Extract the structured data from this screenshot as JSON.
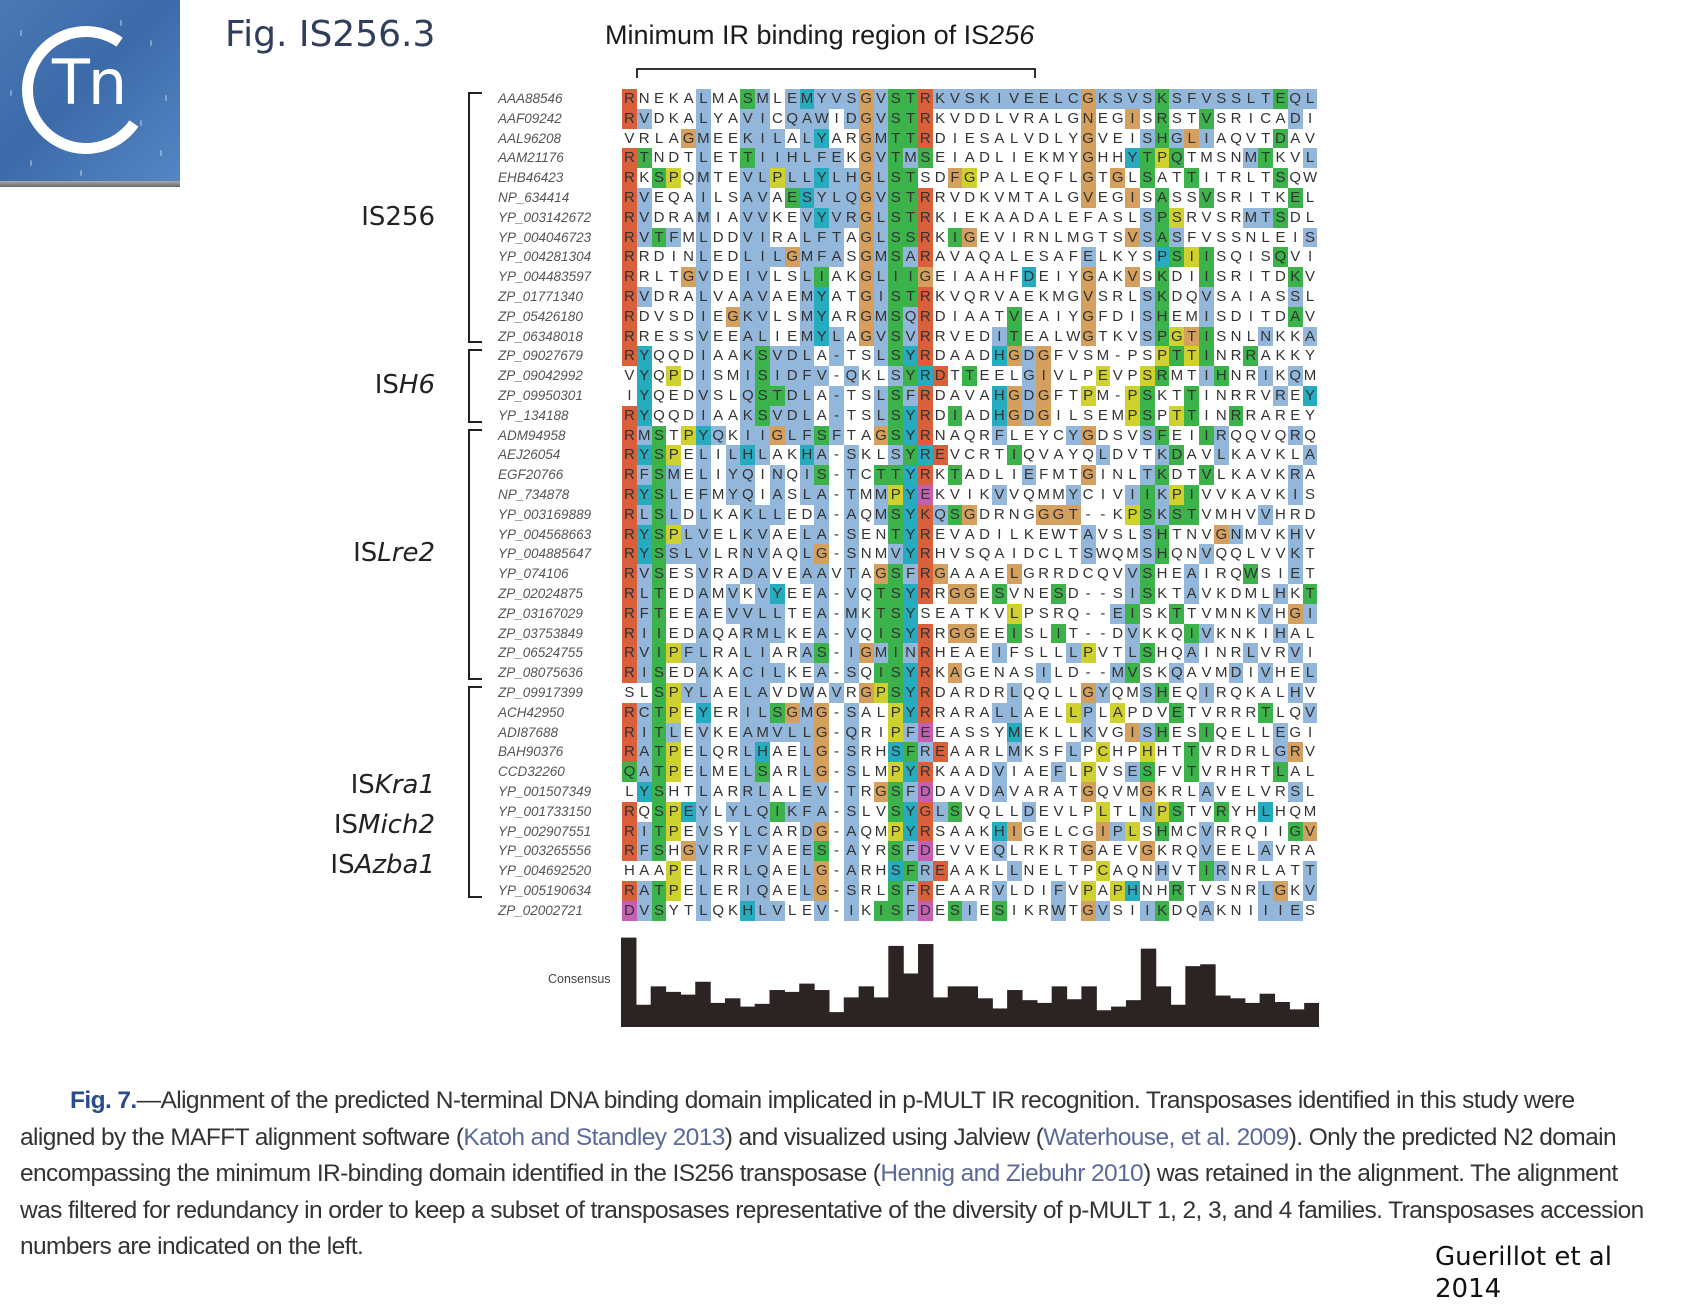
{
  "header": {
    "logo_text": "Tn",
    "fig_title": "Fig. IS256.3",
    "panel_title_prefix": "Minimum IR binding region of IS",
    "panel_title_italic": "256"
  },
  "families": [
    {
      "name": "IS256",
      "label_lines": [
        "IS256"
      ],
      "first_row": 0,
      "last_row": 12
    },
    {
      "name": "ISH6",
      "label_lines": [
        "ISH6"
      ],
      "first_row": 13,
      "last_row": 16
    },
    {
      "name": "ISLre2",
      "label_lines": [
        "ISLre2"
      ],
      "first_row": 17,
      "last_row": 29
    },
    {
      "name": "ISKra1/ISMich2/ISAzba1",
      "label_lines": [
        "ISKra1",
        "ISMich2",
        "ISAzba1"
      ],
      "first_row": 30,
      "last_row": 40
    }
  ],
  "color_legend": {
    "r": "#d9603b",
    "b": "#93b7da",
    "g": "#d5a05e",
    "s": "#3bb34a",
    "y": "#27abbf",
    "p": "#cfd22e",
    "m": "#c45fb2"
  },
  "alignment": [
    {
      "acc": "AAA88546",
      "seq": "RNEKALMASMLEMYVSGVSTRKVSKIVEELCGKSVSKSFVSSLTEQL",
      "col": "r....b..sb.bybbbgbssrbbbbbbbbbbgbbbbsbbbbbbbsbbb"
    },
    {
      "acc": "AAF09242",
      "seq": "RVDKALYAVICQAWIDGVSTRKVDDLVRALGNEGISRSTVSRICADI",
      "col": "rb...b..bb.bbb.bgbssr..........g..g.s..s.....b.b"
    },
    {
      "acc": "AAL96208",
      "seq": "VRLAGMEEKILALYARGMTTRDIESALVDLYGVEISHGLIAQVTDAV",
      "col": "....gb..bbb.by..gbssr..........g...bsbgb....s..b"
    },
    {
      "acc": "AAM21176",
      "seq": "RTNDTLETTIIHLFEKGVTMSEIADLIEKMYGHHYTPQTMSNMTKVL",
      "col": "rs...b..sbbbbbb.gbsbs..........g..ysps....bs..b"
    },
    {
      "acc": "EHB46423",
      "seq": "RKSPQMTEVLPLLYLHGLSTSDFGPALEQFLGTGLSATTITRLTSQW",
      "col": "r.sp.b..bbpbbybbgbss..gp.......g.g.s..s.....s..b"
    },
    {
      "acc": "NP_634414",
      "seq": "RVEQAILSAVAESYLQGVSTRRVDKVMTALGVEGISASSVSRITKEL",
      "col": "rb...b..bb.sybbbgbssr..........g..g.s..s.....s..b"
    },
    {
      "acc": "YP_003142672",
      "seq": "RVDRAMIAVVKEVYVRGLSTRKIEKAADALEFASLSPSRVSRMTSDL",
      "col": "rb...b..bb..bybbgbssr..............bsp....bbs..b"
    },
    {
      "acc": "YP_004046723",
      "seq": "RVTFMLDDVIRALFTAGLSSRKIGEVIRNLMGTSVSASFVSSNLEIS",
      "col": "rbsb.b..bb..bbb.gbssr.sg..........gbsb........b.s"
    },
    {
      "acc": "YP_004281304",
      "seq": "RRDINLEDLILGMFASGMSARAVAQALESAFELKYSPSIISQISQVI",
      "col": "r....b..bbbgbbb.gbsbr..........b....ysps....s..s"
    },
    {
      "acc": "YP_004483597",
      "seq": "RRLTGVDEIVLSLIAKGLIIGEIAAHFDEIYGAKVSKDIISRITDKV",
      "col": "r...gb..bb..bs..gbssg......y...g..g.s..s.....s..b"
    },
    {
      "acc": "ZP_01771340",
      "seq": "RVDRALVAAVAEMYATGISTRKVQRVAEKMGVSRLSKDQVSAIASSL",
      "col": "rb...b..bb..by..gbssr..........g...bs..b.....b..b"
    },
    {
      "acc": "ZP_05426180",
      "seq": "RDVSDIEGKVLSMYARGMSQRDIAATVEAIYGFDISHEMISDITDAV",
      "col": "r....b.gbb..by..gbsbr.....s....g...bs..b.....s..b"
    },
    {
      "acc": "ZP_06348018",
      "seq": "RRESSVEEALIEMYLAGVSVRRVEDITEALWGTKVSPGTISNLNKKA",
      "col": "r....b..bb..byb.gbsbr....bs....g...bspgs...b..b.b"
    },
    {
      "acc": "ZP_09027679",
      "seq": "RYQQDIAAKSVDLA-TSLSYRDAADHGDGFVSM-PSPTTINRRAKKY",
      "col": "ry...b..bsbbb.b..bsyr....ygbg.......psps..s....y"
    },
    {
      "acc": "ZP_09042992",
      "seq": "VYQPDISMISIDFV-QKLSYRDTTEELGIVLPEVPSRMTIHNRIKQM",
      "col": ".y.p.b..bsbbbb.b..bsyr.s...bg...p..ps..bs..b.b..b"
    },
    {
      "acc": "ZP_09950301",
      "seq": "IYQEDVSLQSTDLA-TSLSFRDAVAHGDGFTPM-PSKTTINRRVREY",
      "col": ".y...b..bssbb.b..bsbr....ygbg..p..ps..s.....b.y"
    },
    {
      "acc": "YP_134188",
      "seq": "RYQQDIAAKSVDLA-TSLSYRDIADHGDGILSEMPSPTTINRRAREY",
      "col": "ry...b..bsbbb.b..bsyr.s..ygbg.....ps.ps..s......y"
    },
    {
      "acc": "ADM94958",
      "seq": "RMSTPYQKIIGLFSFTAGSYRNAQRFLEYCYGDSVSFEIIRQQVQRQ",
      "col": "rbs.pyb.bbgbbsb..gsyr....b....bg...bs..sb....b.b"
    },
    {
      "acc": "AEJ26054",
      "seq": "RYSPELILHLAKHA-SKLSYREVCRTIQVAYQLDVTKDAVLKAVKLA",
      "col": "rysp.b.byb..yb.b..bsyr....s.....b...bs..b.....b.b"
    },
    {
      "acc": "EGF20766",
      "seq": "RFSMELIYQINQIS-TCTTYRKTADLIEFMTGINLTKDTVLKAVKRA",
      "col": "rbsb.b.bb.b.bs.b.ssyr.s....b...g...bs..s.....b.b"
    },
    {
      "acc": "NP_734878",
      "seq": "RYSLEFMYQIASLA-TMMPYEKVIKVVQMMYCIVIIKPIVVKAVKIS",
      "col": "rysb.b.bb.b.bb.b.bpym....b....b...bsbps......b.s"
    },
    {
      "acc": "YP_003169889",
      "seq": "RLSLDLKAKLLEDA-AQMSYKQSGDRNGGGT--KPSKSTVMHVVHRD",
      "col": "rbsb.b..bbb..b.b.bsyrbsg....ggg...psbss....b...b"
    },
    {
      "acc": "YP_004568663",
      "seq": "RYSPLVELKVAELA-SENTYREVADILKEWTAVSLSHTNVGNMVKHV",
      "col": "ryspbb..bb..bb.b..syr..........b...bs...gb...b..b"
    },
    {
      "acc": "YP_004885647",
      "seq": "RYSSLVLRNVAQLG-SNMVYRHVSQAIDCLTSWQMSHQNVQQLVVKT",
      "col": "rysbbb..bb..bg.b..byr..........b...bs..b.....b.s"
    },
    {
      "acc": "YP_074106",
      "seq": "RVSESVRADAVEAAVTAGSFRGAAAELGRRDCQVVSHEAIRQWSIET",
      "col": "rbs..b..bb..bb.b.gsbrg....g.......bs..b...s..b.s"
    },
    {
      "acc": "ZP_02024875",
      "seq": "RLTEDAMVKVYEEA-VQTSYRRGGESVNESD--SISKTAVKDMLHKT",
      "col": "rbs..b.b.by..b.b.ssyr.gg.s...s....bs..b.....b.s"
    },
    {
      "acc": "ZP_03167029",
      "seq": "RFTEEAEVVLLTEA-MKTSYSEATKVLPSRQ--EISKTTVMNKVHGI",
      "col": "rbs..b.bbbb..b.b.ssy......p......bs..s.....b.gb"
    },
    {
      "acc": "ZP_03753849",
      "seq": "RIIEDAQARMLKEA-VQISYRRGGEEISLIT--DVKKQIVKNKIHAL",
      "col": "rbs..b..bbb..b.b.ssyr.gg..s..s....b...sb....b..b"
    },
    {
      "acc": "ZP_06524755",
      "seq": "RVIPFLRALIARAS-IGMINRHEAEIFSLLLPVTLSHQAINRLVRVI",
      "col": "rbspbb..bb..bs.bgbsbr....b....bp..bs..b...b..b.s"
    },
    {
      "acc": "ZP_08075636",
      "seq": "RISEDAKACILKEA-SQISYRKAGENASILD--MVSKQAVMDIVHEL",
      "col": "rbs..b..bbb..b.b.ssyr.g.....b....bs..b...b.b..b"
    },
    {
      "acc": "ZP_09917399",
      "seq": "SLSPYLAELAVDWAVRGPSYRDARDRLQQLLGYQMSHEQIRQKALHV",
      "col": "..spbb..bb..b.b.gpsyr.....b....gb..bs..b.....b..b"
    },
    {
      "acc": "ACH42950",
      "seq": "RCTPEYERILSGMG-SALPYRRARALLAELLPLAPDVETVRRRTLQV",
      "col": "rbsp.y..bbsgbg.b..pyr....bb...pb.p...s.....s..b"
    },
    {
      "acc": "ADI87688",
      "seq": "RITLEVKEAMVLLG-QRIPFEEASSYMEKLLKVGISHESIQELLEGI",
      "col": "rbsb.b..bbbbbg.b..pbm.....y....b..gbs..s....b..gb"
    },
    {
      "acc": "BAH90376",
      "seq": "RATPELQRLHAELG-SRHSFREAARLMKSFLPCHPHHTTVRDRLGRV",
      "col": "rbsp.b..by..bg.b..ysbr....b...b.p..p..s.....bg.b"
    },
    {
      "acc": "CCD32260",
      "seq": "QATPELMELSARLG-SLMPYRKAADVIAEFLPVSESFVTVRHRTLAL",
      "col": "sbsp.b..bs..bg.b..pyr....b...b.p..bs..s.....s..b"
    },
    {
      "acc": "YP_001507349",
      "seq": "LYSHTLARRLALEV-TRGSFDDAVDAVARATGQVMGKRLAVELVRSL",
      "col": ".ys..b..bb..bb.b.gsbm....b.....g...g...b.....b..b"
    },
    {
      "acc": "YP_001733150",
      "seq": "RQSPEYLYLQIKFA-SLVSYGLSVQLLDEVLPLTLNPSTVRYHLHQM",
      "col": "r.spyb.bbbsbbb.b..syrbs....b....p..bps..s..y...b"
    },
    {
      "acc": "YP_002907551",
      "seq": "RITPEVSYLCARDG-AQMPYRSAAKHIGELCGIPLSHMCVRRQIIGV",
      "col": "rbsp.b..bb..bg.b..pyr....yg.....gbp.s..b.....sgb"
    },
    {
      "acc": "YP_003265556",
      "seq": "RFSHGVRRFVAEES-AYRSFDEVVEQLRKRTGAEVGKRQVEELAVRA",
      "col": "rbs.gb..bb..bs.b..sbm....b.....g...g...b...b...b"
    },
    {
      "acc": "YP_004692520",
      "seq": "HAAPELRRLQAELG-ARHSFREAAKLLNELTPCAQNHVTIRNRLATT",
      "col": "...p.b..bb..bg.b..ysbr....b.....p...b..sb.....b.s"
    },
    {
      "acc": "YP_005190634",
      "seq": "RATPELERIQAELG-SRLSFREAARVLDIFVPAPHNHRTVSNRLGKV",
      "col": "rbsp.b..bb..bg.b..sbr....b...b.p.py..s.....bg.b"
    },
    {
      "acc": "ZP_02002721",
      "seq": "DVSYTLQKHLVLEV-IKISFDESIESIKRWTGVSIIKDQAKNIIIES",
      "col": "mbs..b..ybb..b.b.ssbm.sb.s...b.gb..bs..b...bbb.s"
    }
  ],
  "chart_data": {
    "type": "bar",
    "title": "Consensus",
    "ylabel": "Consensus",
    "xlabel": "",
    "categories": [],
    "values": [
      0.95,
      0.22,
      0.42,
      0.36,
      0.33,
      0.47,
      0.24,
      0.29,
      0.2,
      0.23,
      0.38,
      0.36,
      0.45,
      0.38,
      0.14,
      0.3,
      0.42,
      0.3,
      0.86,
      0.56,
      0.88,
      0.3,
      0.42,
      0.42,
      0.29,
      0.18,
      0.38,
      0.27,
      0.24,
      0.42,
      0.28,
      0.42,
      0.16,
      0.2,
      0.27,
      0.83,
      0.42,
      0.22,
      0.64,
      0.66,
      0.32,
      0.29,
      0.24,
      0.34,
      0.25,
      0.17,
      0.24
    ],
    "ylim": [
      0,
      1
    ]
  },
  "caption": {
    "fig_label": "Fig. 7.",
    "lines": [
      [
        {
          "t": "Alignment of the predicted N-terminal DNA binding domain implicated in p-MULT IR recognition. Transposases identified in this study were"
        }
      ],
      [
        {
          "t": "aligned by the MAFFT alignment software ("
        },
        {
          "t": "Katoh and Standley 2013",
          "ref": true
        },
        {
          "t": ") and visualized using Jalview ("
        },
        {
          "t": "Waterhouse, et al. 2009",
          "ref": true
        },
        {
          "t": "). Only the predicted N2 domain"
        }
      ],
      [
        {
          "t": "encompassing the minimum IR-binding domain identified in the IS256 transposase ("
        },
        {
          "t": "Hennig and Ziebuhr 2010",
          "ref": true
        },
        {
          "t": ") was retained in the alignment. The alignment"
        }
      ],
      [
        {
          "t": "was filtered for redundancy in order to keep a subset of transposases representative of the diversity of p-MULT 1, 2, 3, and 4 families. Transposases accession"
        }
      ],
      [
        {
          "t": "numbers are indicated on the left."
        }
      ]
    ]
  },
  "credit": {
    "line1": "Guerillot et al",
    "line2": "2014"
  }
}
